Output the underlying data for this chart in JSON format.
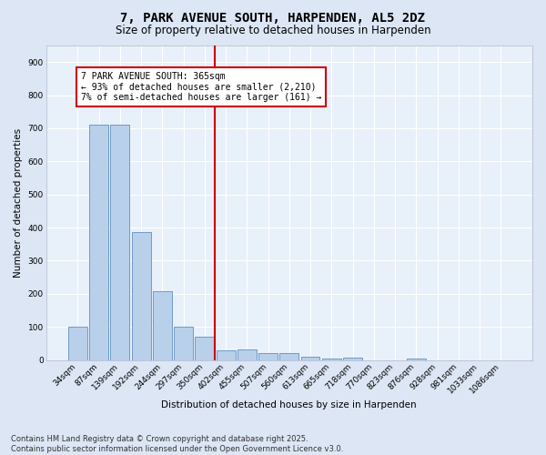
{
  "title": "7, PARK AVENUE SOUTH, HARPENDEN, AL5 2DZ",
  "subtitle": "Size of property relative to detached houses in Harpenden",
  "xlabel": "Distribution of detached houses by size in Harpenden",
  "ylabel": "Number of detached properties",
  "bar_labels": [
    "34sqm",
    "87sqm",
    "139sqm",
    "192sqm",
    "244sqm",
    "297sqm",
    "350sqm",
    "402sqm",
    "455sqm",
    "507sqm",
    "560sqm",
    "613sqm",
    "665sqm",
    "718sqm",
    "770sqm",
    "823sqm",
    "876sqm",
    "928sqm",
    "981sqm",
    "1033sqm",
    "1086sqm"
  ],
  "bar_values": [
    100,
    711,
    711,
    385,
    208,
    100,
    70,
    30,
    33,
    20,
    22,
    10,
    5,
    8,
    0,
    0,
    5,
    0,
    0,
    0,
    0
  ],
  "bar_color": "#b8d0ea",
  "bar_edge_color": "#6090c0",
  "vline_color": "#cc0000",
  "annotation_text": "7 PARK AVENUE SOUTH: 365sqm\n← 93% of detached houses are smaller (2,210)\n7% of semi-detached houses are larger (161) →",
  "annotation_box_color": "#ffffff",
  "annotation_box_edge": "#cc0000",
  "ylim": [
    0,
    950
  ],
  "yticks": [
    0,
    100,
    200,
    300,
    400,
    500,
    600,
    700,
    800,
    900
  ],
  "bg_color": "#dce6f5",
  "plot_bg_color": "#e8f0fa",
  "footer": "Contains HM Land Registry data © Crown copyright and database right 2025.\nContains public sector information licensed under the Open Government Licence v3.0.",
  "title_fontsize": 10,
  "subtitle_fontsize": 8.5,
  "tick_fontsize": 6.5,
  "ylabel_fontsize": 7.5,
  "xlabel_fontsize": 7.5,
  "annotation_fontsize": 7,
  "footer_fontsize": 6
}
